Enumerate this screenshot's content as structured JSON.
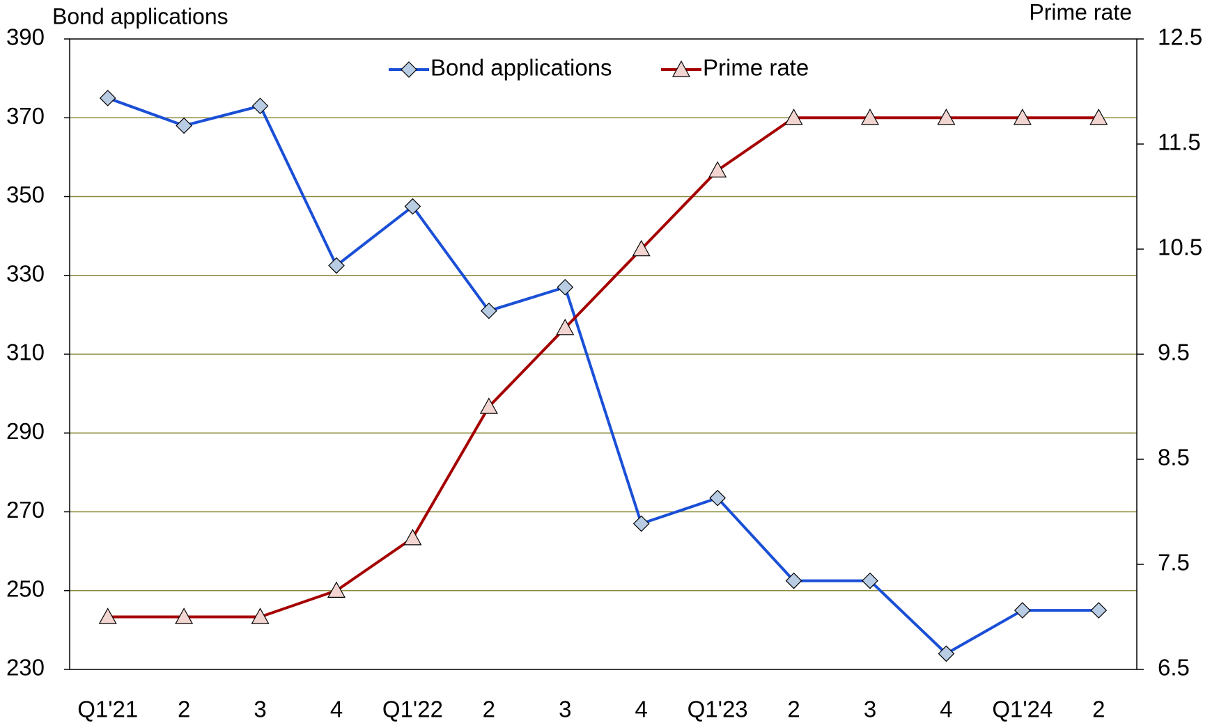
{
  "chart_data": {
    "type": "line",
    "y_label": "Bond applications",
    "y2_label": "Prime rate",
    "categories": [
      "Q1'21",
      "2",
      "3",
      "4",
      "Q1'22",
      "2",
      "3",
      "4",
      "Q1'23",
      "2",
      "3",
      "4",
      "Q1'24",
      "2"
    ],
    "series": [
      {
        "name": "Bond applications",
        "color": "#1a4fd6",
        "marker": "diamond",
        "values": [
          375,
          368,
          373,
          332.5,
          347.5,
          321,
          327,
          267,
          273.5,
          252.5,
          252.5,
          234,
          245,
          245
        ]
      },
      {
        "name": "Prime rate",
        "color": "#a50000",
        "marker": "triangle",
        "axis": "y2",
        "values": [
          7.0,
          7.0,
          7.0,
          7.25,
          7.75,
          9.0,
          9.75,
          10.5,
          11.25,
          11.75,
          11.75,
          11.75,
          11.75,
          11.75
        ]
      }
    ],
    "ylim": [
      230,
      390
    ],
    "yticks": [
      230,
      250,
      270,
      290,
      310,
      330,
      350,
      370,
      390
    ],
    "y2lim": [
      6.5,
      12.5
    ],
    "y2ticks": [
      6.5,
      7.5,
      8.5,
      9.5,
      10.5,
      11.5,
      12.5
    ],
    "grid": true,
    "legend": "top"
  }
}
